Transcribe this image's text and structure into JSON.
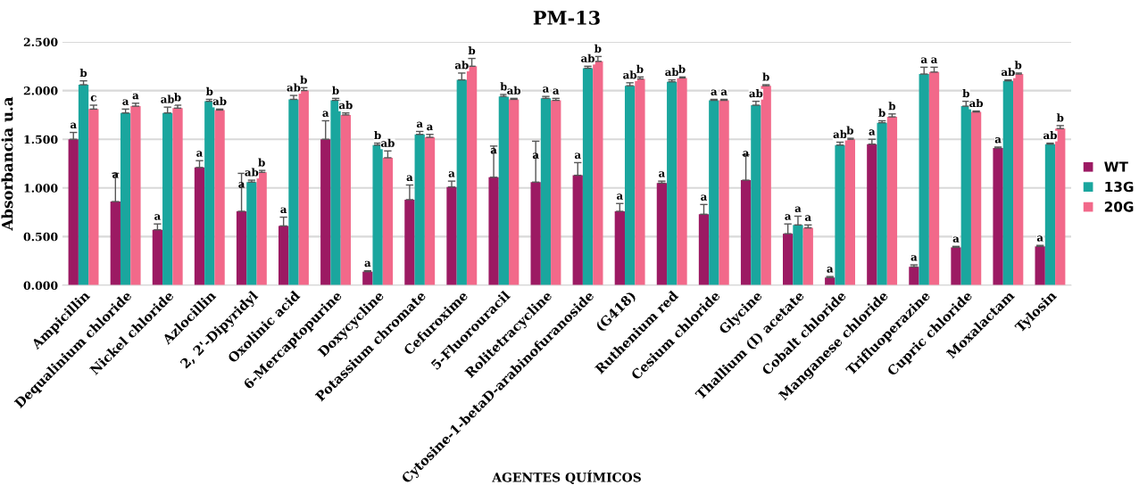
{
  "chart_data": {
    "type": "bar",
    "title": "PM-13",
    "xlabel": "AGENTES QUÍMICOS",
    "ylabel": "Absorbancia u.a",
    "categories": [
      "Ampicillin",
      "Dequalinium chloride",
      "Nickel chloride",
      "Azlocillin",
      "2, 2'-Dipyridyl",
      "Oxolinic acid",
      "6-Mercaptopurine",
      "Doxycycline",
      "Potassium chromate",
      "Cefuroxime",
      "5-Fluorouracil",
      "Rolitetracycline",
      "Cytosine-1-betaD-arabinofuranoside",
      "(G418)",
      "Ruthenium red",
      "Cesium chloride",
      "Glycine",
      "Thallium (I) acetate",
      "Cobalt chloride",
      "Manganese chloride",
      "Trifluoperazine",
      "Cupric chloride",
      "Moxalactam",
      "Tylosin"
    ],
    "series": [
      {
        "name": "WT",
        "color": "#9c1a63",
        "values": [
          1.5,
          0.86,
          0.57,
          1.21,
          0.76,
          0.61,
          1.5,
          0.14,
          0.88,
          1.01,
          1.11,
          1.06,
          1.13,
          0.76,
          1.05,
          0.73,
          1.08,
          0.53,
          0.08,
          1.45,
          0.19,
          0.39,
          1.41,
          0.4
        ],
        "errors": [
          [
            1.5,
            1.57
          ],
          [
            0.86,
            1.15
          ],
          [
            0.57,
            0.63
          ],
          [
            1.21,
            1.28
          ],
          [
            0.76,
            1.15
          ],
          [
            0.61,
            0.7
          ],
          [
            1.5,
            1.69
          ],
          [
            0.14,
            0.15
          ],
          [
            0.88,
            1.03
          ],
          [
            1.01,
            1.07
          ],
          [
            1.11,
            1.43
          ],
          [
            1.06,
            1.48
          ],
          [
            1.13,
            1.26
          ],
          [
            0.76,
            0.84
          ],
          [
            1.05,
            1.07
          ],
          [
            0.73,
            0.83
          ],
          [
            1.08,
            1.34
          ],
          [
            0.53,
            0.63
          ],
          [
            0.08,
            0.09
          ],
          [
            1.45,
            1.5
          ],
          [
            0.19,
            0.21
          ],
          [
            0.39,
            0.4
          ],
          [
            1.41,
            1.42
          ],
          [
            0.4,
            0.41
          ]
        ],
        "value_labels": [
          "a",
          "a",
          "a",
          "a",
          "a",
          "a",
          "a",
          "a",
          "a",
          "a",
          "a",
          "a",
          "a",
          "a",
          "a",
          "a",
          "a",
          "a",
          "a",
          "a",
          "a",
          "a",
          "a",
          "a"
        ]
      },
      {
        "name": "13G",
        "color": "#1aa69e",
        "values": [
          2.06,
          1.77,
          1.77,
          1.89,
          1.06,
          1.91,
          1.9,
          1.44,
          1.55,
          2.11,
          1.94,
          1.92,
          2.23,
          2.05,
          2.09,
          1.9,
          1.85,
          0.62,
          1.44,
          1.67,
          2.17,
          1.84,
          2.1,
          1.45
        ],
        "errors": [
          [
            2.06,
            2.1
          ],
          [
            1.77,
            1.81
          ],
          [
            1.77,
            1.83
          ],
          [
            1.89,
            1.91
          ],
          [
            1.06,
            1.08
          ],
          [
            1.91,
            1.95
          ],
          [
            1.9,
            1.92
          ],
          [
            1.44,
            1.46
          ],
          [
            1.55,
            1.58
          ],
          [
            2.11,
            2.18
          ],
          [
            1.94,
            1.96
          ],
          [
            1.92,
            1.94
          ],
          [
            2.23,
            2.25
          ],
          [
            2.05,
            2.08
          ],
          [
            2.09,
            2.11
          ],
          [
            1.9,
            1.91
          ],
          [
            1.85,
            1.89
          ],
          [
            0.62,
            0.71
          ],
          [
            1.44,
            1.47
          ],
          [
            1.67,
            1.69
          ],
          [
            2.17,
            2.24
          ],
          [
            1.84,
            1.89
          ],
          [
            2.1,
            2.11
          ],
          [
            1.45,
            1.46
          ]
        ],
        "value_labels": [
          "b",
          "a",
          "ab",
          "b",
          "ab",
          "ab",
          "b",
          "b",
          "a",
          "ab",
          "b",
          "a",
          "ab",
          "ab",
          "ab",
          "a",
          "ab",
          "a",
          "ab",
          "b",
          "a",
          "b",
          "ab",
          "ab"
        ]
      },
      {
        "name": "20G",
        "color": "#f2698a",
        "values": [
          1.81,
          1.84,
          1.82,
          1.8,
          1.16,
          2.0,
          1.75,
          1.31,
          1.52,
          2.25,
          1.91,
          1.9,
          2.3,
          2.12,
          2.13,
          1.9,
          2.05,
          0.59,
          1.5,
          1.73,
          2.19,
          1.78,
          2.17,
          1.61
        ],
        "errors": [
          [
            1.81,
            1.85
          ],
          [
            1.84,
            1.87
          ],
          [
            1.82,
            1.85
          ],
          [
            1.8,
            1.81
          ],
          [
            1.16,
            1.18
          ],
          [
            2.0,
            2.03
          ],
          [
            1.75,
            1.77
          ],
          [
            1.31,
            1.38
          ],
          [
            1.52,
            1.55
          ],
          [
            2.25,
            2.33
          ],
          [
            1.91,
            1.92
          ],
          [
            1.9,
            1.92
          ],
          [
            2.3,
            2.35
          ],
          [
            2.12,
            2.14
          ],
          [
            2.13,
            2.14
          ],
          [
            1.9,
            1.91
          ],
          [
            2.05,
            2.06
          ],
          [
            0.59,
            0.62
          ],
          [
            1.5,
            1.51
          ],
          [
            1.73,
            1.76
          ],
          [
            2.19,
            2.24
          ],
          [
            1.78,
            1.79
          ],
          [
            2.17,
            2.18
          ],
          [
            1.61,
            1.64
          ]
        ],
        "value_labels": [
          "c",
          "a",
          "b",
          "ab",
          "b",
          "b",
          "ab",
          "ab",
          "a",
          "b",
          "ab",
          "a",
          "b",
          "b",
          "b",
          "a",
          "b",
          "a",
          "b",
          "b",
          "a",
          "ab",
          "b",
          "b"
        ]
      }
    ],
    "ylim": [
      0,
      2.5
    ],
    "yticks": [
      {
        "value": 0,
        "label": "0.000"
      },
      {
        "value": 0.5,
        "label": "0.500"
      },
      {
        "value": 1,
        "label": "1.000"
      },
      {
        "value": 1.5,
        "label": "1.500"
      },
      {
        "value": 2,
        "label": "2.000"
      },
      {
        "value": 2.5,
        "label": "2.500"
      }
    ],
    "grid": "y",
    "legend": "right"
  }
}
